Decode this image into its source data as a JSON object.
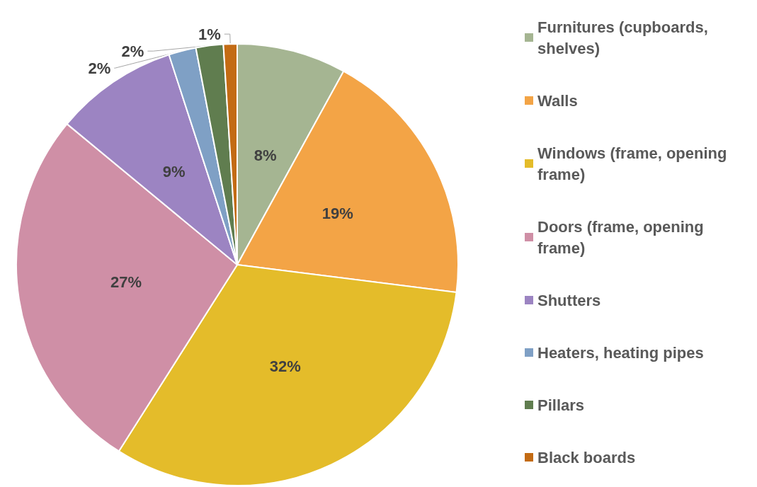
{
  "chart_data": {
    "type": "pie",
    "categories": [
      "Furnitures (cupboards, shelves)",
      "Walls",
      "Windows (frame, opening frame)",
      "Doors (frame, opening frame)",
      "Shutters",
      "Heaters, heating pipes",
      "Pillars",
      "Black boards"
    ],
    "values": [
      8,
      19,
      32,
      27,
      9,
      2,
      2,
      1
    ],
    "value_labels": [
      "8%",
      "19%",
      "32%",
      "27%",
      "9%",
      "2%",
      "2%",
      "1%"
    ],
    "colors": [
      "#a5b592",
      "#f3a446",
      "#e4bc2a",
      "#cf8fa6",
      "#9c84c2",
      "#7fa0c5",
      "#607d4f",
      "#c36b14"
    ],
    "legend": "right"
  }
}
